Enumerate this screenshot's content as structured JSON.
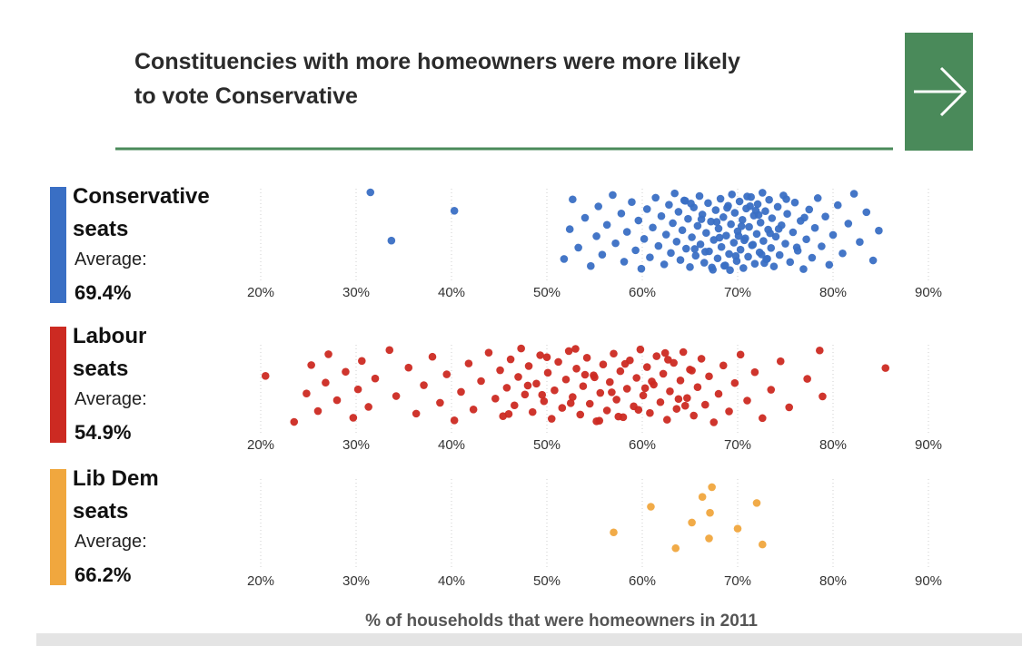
{
  "title": "Constituencies with more homeowners were more likely to vote Conservative",
  "x_label": "% of households that were homeowners in 2011",
  "chart_data": [
    {
      "type": "strip",
      "name": "Conservative seats",
      "average_label": "Average:",
      "average": "69.4%",
      "color": "#3a6fc4",
      "xlim": [
        20,
        90
      ],
      "xticks": [
        {
          "value": 20,
          "label": "20%"
        },
        {
          "value": 30,
          "label": "30%"
        },
        {
          "value": 40,
          "label": "40%"
        },
        {
          "value": 50,
          "label": "50%"
        },
        {
          "value": 60,
          "label": "60%"
        },
        {
          "value": 70,
          "label": "70%"
        },
        {
          "value": 80,
          "label": "80%"
        },
        {
          "value": 90,
          "label": "90%"
        }
      ],
      "values": [
        31.5,
        33.7,
        40.3,
        51.8,
        52.4,
        52.7,
        53.3,
        54.0,
        54.6,
        55.2,
        55.4,
        55.8,
        56.3,
        56.9,
        57.2,
        57.8,
        58.1,
        58.4,
        58.9,
        59.3,
        59.6,
        59.9,
        60.2,
        60.5,
        60.8,
        61.1,
        61.4,
        61.7,
        62.0,
        62.3,
        62.5,
        62.8,
        63.0,
        63.2,
        63.4,
        63.6,
        63.8,
        64.0,
        64.2,
        64.4,
        64.6,
        64.8,
        65.0,
        65.2,
        65.4,
        65.6,
        65.8,
        66.0,
        66.1,
        66.3,
        66.5,
        66.7,
        66.9,
        67.0,
        67.2,
        67.4,
        67.5,
        67.7,
        67.9,
        68.0,
        68.2,
        68.3,
        68.5,
        68.7,
        68.8,
        69.0,
        69.1,
        69.3,
        69.4,
        69.6,
        69.7,
        69.9,
        70.0,
        70.2,
        70.3,
        70.5,
        70.6,
        70.8,
        70.9,
        71.1,
        71.2,
        71.4,
        71.5,
        71.7,
        71.8,
        72.0,
        72.1,
        72.3,
        72.4,
        72.6,
        72.7,
        72.9,
        73.0,
        73.2,
        73.3,
        73.5,
        73.6,
        73.8,
        74.0,
        74.2,
        74.4,
        74.6,
        74.8,
        75.0,
        75.2,
        75.5,
        75.8,
        76.0,
        76.3,
        76.6,
        76.9,
        77.2,
        77.5,
        77.8,
        78.1,
        78.4,
        78.8,
        79.2,
        79.6,
        80.0,
        80.5,
        81.0,
        81.6,
        82.2,
        82.8,
        83.5,
        84.2,
        84.8,
        64.5,
        65.5,
        66.2,
        67.3,
        68.1,
        68.9,
        69.8,
        70.4,
        71.0,
        71.6,
        72.2,
        72.8,
        73.4,
        65.1,
        66.6,
        67.8,
        69.2,
        70.7,
        71.9,
        73.1,
        74.3,
        75.1,
        76.2,
        77.0,
        68.6,
        70.1,
        71.3,
        72.5
      ]
    },
    {
      "type": "strip",
      "name": "Labour seats",
      "average_label": "Average:",
      "average": "54.9%",
      "color": "#cc2a22",
      "xlim": [
        20,
        90
      ],
      "xticks": [
        {
          "value": 20,
          "label": "20%"
        },
        {
          "value": 30,
          "label": "30%"
        },
        {
          "value": 40,
          "label": "40%"
        },
        {
          "value": 50,
          "label": "50%"
        },
        {
          "value": 60,
          "label": "60%"
        },
        {
          "value": 70,
          "label": "70%"
        },
        {
          "value": 80,
          "label": "80%"
        },
        {
          "value": 90,
          "label": "90%"
        }
      ],
      "values": [
        20.5,
        23.5,
        24.8,
        25.3,
        26.0,
        26.8,
        27.1,
        28.0,
        28.9,
        29.7,
        30.2,
        30.6,
        31.3,
        32.0,
        33.5,
        34.2,
        35.5,
        36.3,
        37.1,
        38.0,
        38.8,
        39.5,
        40.3,
        41.0,
        41.8,
        42.3,
        43.1,
        43.9,
        44.6,
        45.1,
        45.4,
        45.8,
        46.2,
        46.6,
        47.0,
        47.3,
        47.7,
        48.1,
        48.5,
        48.9,
        49.3,
        49.7,
        50.1,
        50.5,
        50.8,
        51.2,
        51.6,
        52.0,
        52.3,
        52.7,
        53.1,
        53.5,
        53.8,
        54.2,
        54.5,
        54.9,
        55.2,
        55.6,
        55.9,
        56.3,
        56.6,
        57.0,
        57.3,
        57.7,
        58.0,
        58.4,
        58.7,
        59.1,
        59.4,
        59.8,
        60.1,
        60.5,
        60.8,
        61.2,
        61.5,
        61.9,
        62.2,
        62.6,
        62.9,
        63.3,
        63.6,
        64.0,
        64.3,
        64.7,
        65.0,
        65.4,
        65.8,
        66.2,
        66.6,
        67.0,
        67.5,
        68.0,
        68.5,
        69.1,
        69.7,
        70.3,
        71.0,
        71.8,
        72.6,
        73.5,
        74.5,
        75.4,
        77.3,
        78.6,
        78.9,
        85.5,
        46.0,
        48.0,
        50.0,
        52.5,
        54.0,
        55.5,
        56.8,
        58.2,
        59.6,
        61.0,
        62.4,
        63.8,
        65.2,
        57.5,
        60.3,
        62.7,
        64.5,
        55.0,
        53.0,
        49.5
      ]
    },
    {
      "type": "strip",
      "name": "Lib Dem seats",
      "average_label": "Average:",
      "average": "66.2%",
      "color": "#f0a73e",
      "xlim": [
        20,
        90
      ],
      "xticks": [
        {
          "value": 20,
          "label": "20%"
        },
        {
          "value": 30,
          "label": "30%"
        },
        {
          "value": 40,
          "label": "40%"
        },
        {
          "value": 50,
          "label": "50%"
        },
        {
          "value": 60,
          "label": "60%"
        },
        {
          "value": 70,
          "label": "70%"
        },
        {
          "value": 80,
          "label": "80%"
        },
        {
          "value": 90,
          "label": "90%"
        }
      ],
      "values": [
        57.0,
        60.9,
        63.5,
        65.2,
        66.3,
        67.0,
        67.1,
        67.3,
        70.0,
        72.0,
        72.6
      ]
    }
  ]
}
